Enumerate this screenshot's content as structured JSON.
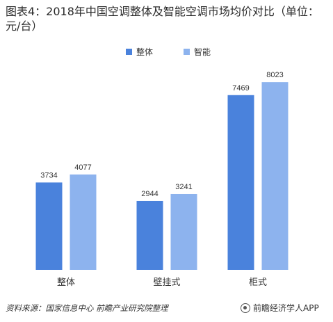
{
  "title": "图表4：2018年中国空调整体及智能空调市场均价对比（单位：元/台）",
  "source_note": "资料来源：国家信息中心 前瞻产业研究院整理",
  "brand_text": "前瞻经济学人APP",
  "colors": {
    "overall": "#4a82dc",
    "smart": "#8db3ee"
  },
  "chart_data": {
    "type": "bar",
    "categories": [
      "整体",
      "壁挂式",
      "柜式"
    ],
    "series": [
      {
        "name": "整体",
        "values": [
          3734,
          2944,
          7469
        ]
      },
      {
        "name": "智能",
        "values": [
          4077,
          3241,
          8023
        ]
      }
    ],
    "ylim": [
      0,
      8800
    ],
    "legend": "top-center",
    "grid": false,
    "xlabel": "",
    "ylabel": ""
  }
}
